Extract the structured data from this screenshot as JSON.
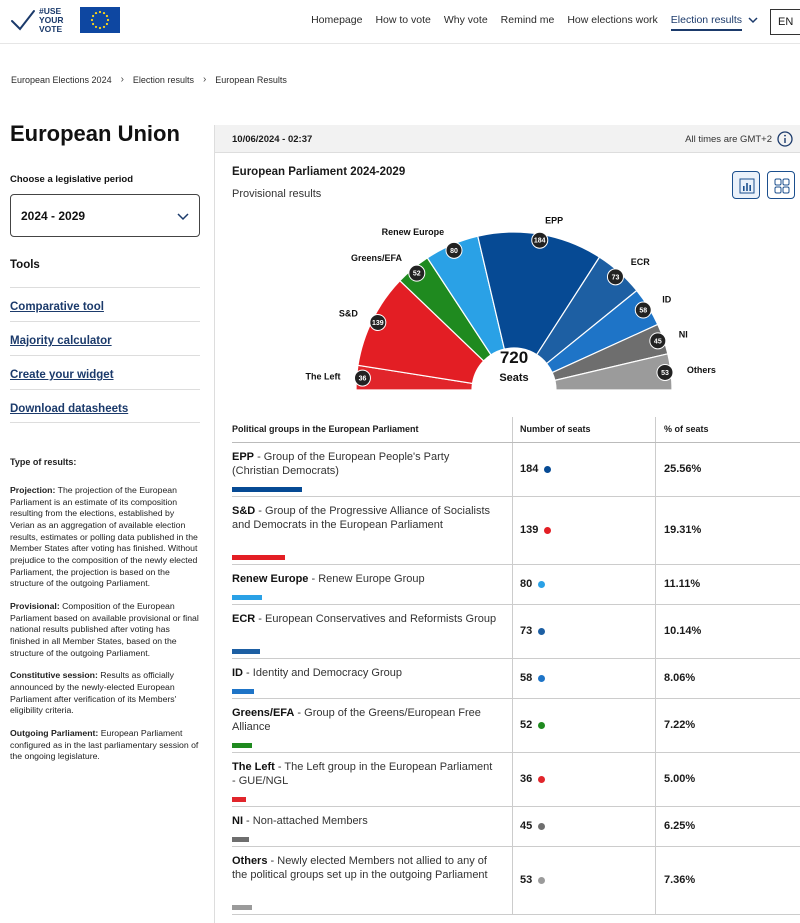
{
  "header": {
    "logo_text": [
      "#USE",
      "YOUR",
      "VOTE"
    ],
    "nav": [
      {
        "label": "Homepage"
      },
      {
        "label": "How to vote"
      },
      {
        "label": "Why vote"
      },
      {
        "label": "Remind me"
      },
      {
        "label": "How elections work"
      },
      {
        "label": "Election results",
        "active": true
      }
    ],
    "language": "EN"
  },
  "breadcrumb": [
    "European Elections 2024",
    "Election results",
    "European Results"
  ],
  "sidebar": {
    "title": "European Union",
    "period_label": "Choose a legislative period",
    "period_value": "2024 - 2029",
    "tools_title": "Tools",
    "tools": [
      "Comparative tool",
      "Majority calculator",
      "Create your widget",
      "Download datasheets"
    ],
    "results_types_title": "Type of results:",
    "results_types": [
      {
        "term": "Projection:",
        "text": "The projection of the European Parliament is an estimate of its composition resulting from the elections, established by Verian as an aggregation of available election results, estimates or polling data published in the Member States after voting has finished. Without prejudice to the composition of the newly elected Parliament, the projection is based on the structure of the outgoing Parliament."
      },
      {
        "term": "Provisional:",
        "text": "Composition of the European Parliament based on available provisional or final national results published after voting has finished in all Member States, based on the structure of the outgoing Parliament."
      },
      {
        "term": "Constitutive session:",
        "text": "Results as officially announced by the newly-elected European Parliament after verification of its Members' eligibility criteria."
      },
      {
        "term": "Outgoing Parliament:",
        "text": "European Parliament configured as in the last parliamentary session of the ongoing legislature."
      }
    ]
  },
  "panel": {
    "timestamp": "10/06/2024 - 02:37",
    "timezone": "All times are GMT+2",
    "chart_title": "European Parliament 2024-2029",
    "chart_subtitle": "Provisional results",
    "total_seats": "720",
    "seats_label": "Seats"
  },
  "table": {
    "headers": {
      "group": "Political groups in the European Parliament",
      "seats": "Number of seats",
      "pct": "% of seats"
    },
    "rows": [
      {
        "abbr": "EPP",
        "name": "Group of the European People's Party (Christian Democrats)",
        "seats": "184",
        "pct": "25.56%",
        "color": "#064a94"
      },
      {
        "abbr": "S&D",
        "name": "Group of the Progressive Alliance of Socialists and Democrats in the European Parliament",
        "seats": "139",
        "pct": "19.31%",
        "color": "#e31e24"
      },
      {
        "abbr": "Renew Europe",
        "name": "Renew Europe Group",
        "seats": "80",
        "pct": "11.11%",
        "color": "#2aa1e6"
      },
      {
        "abbr": "ECR",
        "name": "European Conservatives and Reformists Group",
        "seats": "73",
        "pct": "10.14%",
        "color": "#1d5fa3"
      },
      {
        "abbr": "ID",
        "name": "Identity and Democracy Group",
        "seats": "58",
        "pct": "8.06%",
        "color": "#1e74c7"
      },
      {
        "abbr": "Greens/EFA",
        "name": "Group of the Greens/European Free Alliance",
        "seats": "52",
        "pct": "7.22%",
        "color": "#1f8a1f"
      },
      {
        "abbr": "The Left",
        "name": "The Left group in the European Parliament - GUE/NGL",
        "seats": "36",
        "pct": "5.00%",
        "color": "#e1252b"
      },
      {
        "abbr": "NI",
        "name": "Non-attached Members",
        "seats": "45",
        "pct": "6.25%",
        "color": "#6e6e6e"
      },
      {
        "abbr": "Others",
        "name": "Newly elected Members not allied to any of the political groups set up in the outgoing Parliament",
        "seats": "53",
        "pct": "7.36%",
        "color": "#9b9b9b"
      }
    ]
  },
  "chart_data": {
    "type": "pie",
    "subtype": "hemicycle",
    "order": [
      "The Left",
      "S&D",
      "Greens/EFA",
      "Renew Europe",
      "EPP",
      "ECR",
      "ID",
      "NI",
      "Others"
    ],
    "values": [
      36,
      139,
      52,
      80,
      184,
      73,
      58,
      45,
      53
    ],
    "colors": [
      "#e1252b",
      "#e31e24",
      "#1f8a1f",
      "#2aa1e6",
      "#064a94",
      "#1d5fa3",
      "#1e74c7",
      "#6e6e6e",
      "#9b9b9b"
    ],
    "total": 720
  }
}
